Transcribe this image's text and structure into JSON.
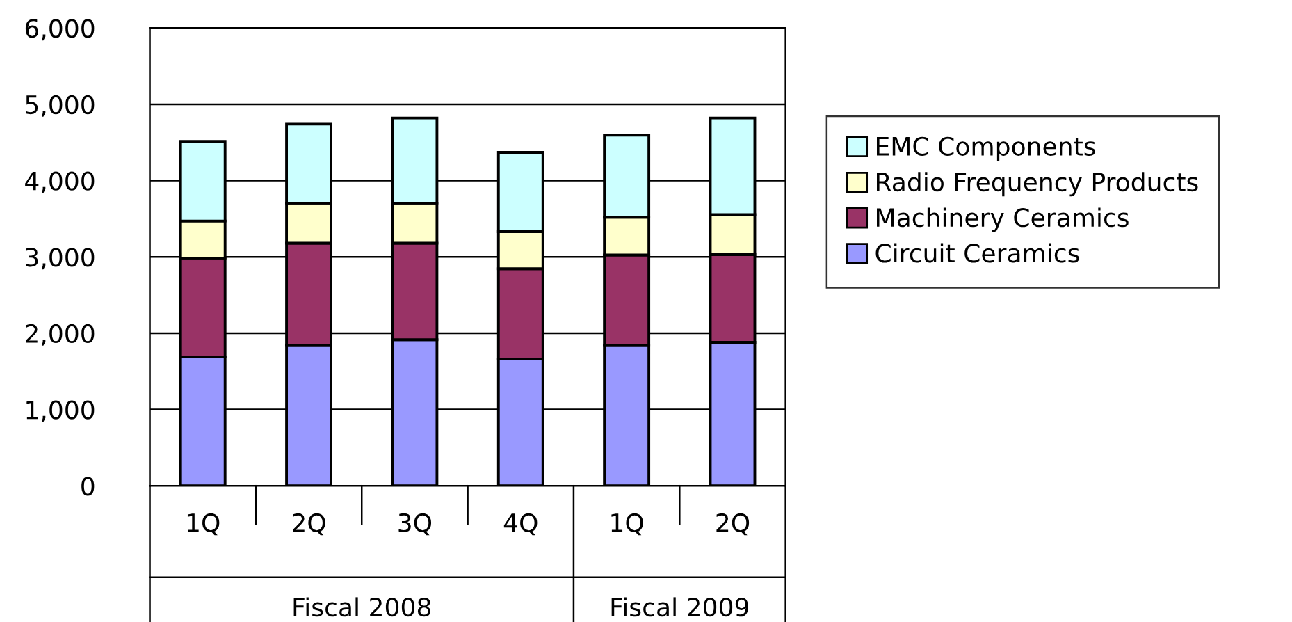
{
  "chart_data": {
    "type": "bar",
    "stacked": true,
    "categories": [
      "1Q",
      "2Q",
      "3Q",
      "4Q",
      "1Q",
      "2Q"
    ],
    "series": [
      {
        "name": "Circuit Ceramics",
        "color": "#9999ff",
        "values": [
          1690,
          1840,
          1915,
          1660,
          1840,
          1880
        ]
      },
      {
        "name": "Machinery Ceramics",
        "color": "#993366",
        "values": [
          1295,
          1340,
          1265,
          1185,
          1185,
          1150
        ]
      },
      {
        "name": "Radio Frequency Products",
        "color": "#ffffcc",
        "values": [
          485,
          525,
          525,
          485,
          495,
          525
        ]
      },
      {
        "name": "EMC Components",
        "color": "#ccffff",
        "values": [
          1045,
          1035,
          1115,
          1040,
          1075,
          1265
        ]
      }
    ],
    "ylim": [
      0,
      6000
    ],
    "yticks": [
      {
        "value": 0,
        "label": "0"
      },
      {
        "value": 1000,
        "label": "1,000"
      },
      {
        "value": 2000,
        "label": "2,000"
      },
      {
        "value": 3000,
        "label": "3,000"
      },
      {
        "value": 4000,
        "label": "4,000"
      },
      {
        "value": 5000,
        "label": "5,000"
      },
      {
        "value": 6000,
        "label": "6,000"
      }
    ],
    "grid": "y",
    "legend": "right",
    "annotations": [
      "Fiscal 2008",
      "Fiscal 2009"
    ]
  }
}
